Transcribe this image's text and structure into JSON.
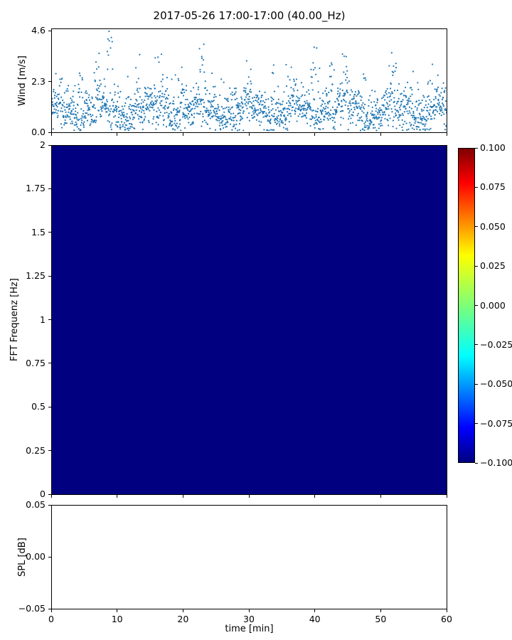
{
  "title": "2017-05-26 17:00-17:00 (40.00_Hz)",
  "colors": {
    "scatter_marker": "#2077b4",
    "heatmap_fill": "#000080",
    "axis": "#000000",
    "background": "#ffffff"
  },
  "chart_data": [
    {
      "id": "wind",
      "type": "scatter",
      "ylabel": "Wind [m/s]",
      "xlim": [
        0,
        60
      ],
      "ylim": [
        0,
        4.7
      ],
      "yticks": [
        {
          "v": 0.0,
          "label": "0.0"
        },
        {
          "v": 2.3,
          "label": "2.3"
        },
        {
          "v": 4.6,
          "label": "4.6"
        }
      ],
      "marker_color": "#2077b4",
      "description": "Dense wind-speed time series over 60 minutes; small blue dot markers; values mostly between 0.3 and 2.5 m/s with intermittent gust spikes up to ~4.6 m/s (maximum near t = 9 min).",
      "points_generator": {
        "count": 1900,
        "seed": 42,
        "base_mean": 1.0,
        "base_sd": 0.45,
        "gust_prob": 0.05,
        "gust_extra": 1.5,
        "min": 0.08,
        "max": 4.6,
        "slow_wave": [
          [
            0.28,
            0.85,
            1.2
          ],
          [
            0.18,
            2.6,
            0.4
          ]
        ],
        "gusts": [
          {
            "t": 1.5,
            "w": 0.4,
            "a": 1.6
          },
          {
            "t": 4.3,
            "w": 0.4,
            "a": 2.1
          },
          {
            "t": 6.8,
            "w": 0.4,
            "a": 1.8
          },
          {
            "t": 9.0,
            "w": 0.6,
            "a": 3.5
          },
          {
            "t": 13.0,
            "w": 0.4,
            "a": 1.5
          },
          {
            "t": 16.5,
            "w": 0.4,
            "a": 2.2
          },
          {
            "t": 19.5,
            "w": 0.4,
            "a": 1.6
          },
          {
            "t": 23.0,
            "w": 0.6,
            "a": 2.1
          },
          {
            "t": 26.0,
            "w": 0.4,
            "a": 1.5
          },
          {
            "t": 30.0,
            "w": 0.4,
            "a": 1.5
          },
          {
            "t": 33.5,
            "w": 0.4,
            "a": 1.6
          },
          {
            "t": 36.0,
            "w": 0.4,
            "a": 1.5
          },
          {
            "t": 40.0,
            "w": 0.7,
            "a": 2.3
          },
          {
            "t": 42.5,
            "w": 0.5,
            "a": 2.2
          },
          {
            "t": 44.5,
            "w": 0.4,
            "a": 1.9
          },
          {
            "t": 47.5,
            "w": 0.4,
            "a": 1.7
          },
          {
            "t": 52.0,
            "w": 0.5,
            "a": 1.9
          },
          {
            "t": 54.5,
            "w": 0.4,
            "a": 1.5
          },
          {
            "t": 57.5,
            "w": 0.4,
            "a": 1.7
          },
          {
            "t": 59.5,
            "w": 0.3,
            "a": 1.5
          }
        ]
      }
    },
    {
      "id": "spectrogram",
      "type": "heatmap",
      "ylabel": "FFT Frequenz [Hz]",
      "xlim": [
        0,
        60
      ],
      "ylim": [
        0,
        2
      ],
      "yticks": [
        {
          "v": 0,
          "label": "0"
        },
        {
          "v": 0.25,
          "label": "0.25"
        },
        {
          "v": 0.5,
          "label": "0.5"
        },
        {
          "v": 0.75,
          "label": "0.75"
        },
        {
          "v": 1,
          "label": "1"
        },
        {
          "v": 1.25,
          "label": "1.25"
        },
        {
          "v": 1.5,
          "label": "1.5"
        },
        {
          "v": 1.75,
          "label": "1.75"
        },
        {
          "v": 2,
          "label": "2"
        }
      ],
      "uniform_value": -0.1,
      "fill_color": "#000080",
      "colormap": "jet",
      "description": "Spectrogram panel is uniformly at the colormap minimum (-0.100), rendered as solid dark navy.",
      "colorbar": {
        "vmin": -0.1,
        "vmax": 0.1,
        "ticks": [
          {
            "v": 0.1,
            "label": "0.100"
          },
          {
            "v": 0.075,
            "label": "0.075"
          },
          {
            "v": 0.05,
            "label": "0.050"
          },
          {
            "v": 0.025,
            "label": "0.025"
          },
          {
            "v": 0.0,
            "label": "0.000"
          },
          {
            "v": -0.025,
            "label": "−0.025"
          },
          {
            "v": -0.05,
            "label": "−0.050"
          },
          {
            "v": -0.075,
            "label": "−0.075"
          },
          {
            "v": -0.1,
            "label": "−0.100"
          }
        ],
        "gradient": [
          {
            "color": "#800000",
            "pos": 0
          },
          {
            "color": "#ff0000",
            "pos": 11
          },
          {
            "color": "#ffff00",
            "pos": 34
          },
          {
            "color": "#7dff78",
            "pos": 50
          },
          {
            "color": "#00ffff",
            "pos": 66
          },
          {
            "color": "#0000ff",
            "pos": 89
          },
          {
            "color": "#000080",
            "pos": 100
          }
        ]
      }
    },
    {
      "id": "spl",
      "type": "line",
      "series": [],
      "ylabel": "SPL [dB]",
      "xlabel": "time [min]",
      "xlim": [
        0,
        60
      ],
      "ylim": [
        -0.05,
        0.05
      ],
      "yticks": [
        {
          "v": 0.05,
          "label": "0.05"
        },
        {
          "v": 0.0,
          "label": "0.00"
        },
        {
          "v": -0.05,
          "label": "−0.05"
        }
      ],
      "xticks": [
        {
          "v": 0,
          "label": "0"
        },
        {
          "v": 10,
          "label": "10"
        },
        {
          "v": 20,
          "label": "20"
        },
        {
          "v": 30,
          "label": "30"
        },
        {
          "v": 40,
          "label": "40"
        },
        {
          "v": 50,
          "label": "50"
        },
        {
          "v": 60,
          "label": "60"
        }
      ],
      "description": "Empty axes — no SPL data plotted."
    }
  ]
}
